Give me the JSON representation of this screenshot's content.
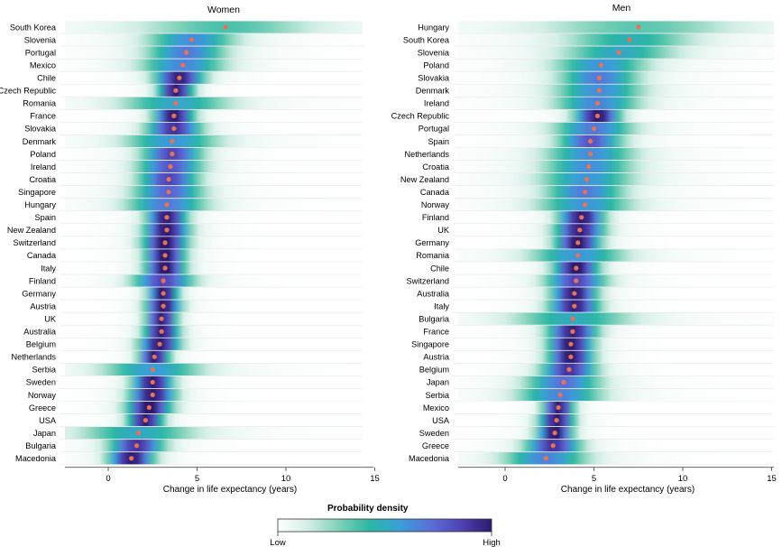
{
  "chart_data": [
    {
      "type": "heatmap",
      "title": "Women",
      "xlabel": "Change in life expectancy (years)",
      "xlim": [
        -2.2,
        15
      ],
      "xticks": [
        0,
        5,
        10,
        15
      ],
      "categories": [
        "South Korea",
        "Slovenia",
        "Portugal",
        "Mexico",
        "Chile",
        "Czech Republic",
        "Romania",
        "France",
        "Slovakia",
        "Denmark",
        "Poland",
        "Ireland",
        "Croatia",
        "Singapore",
        "Hungary",
        "Spain",
        "New Zealand",
        "Switzerland",
        "Canada",
        "Italy",
        "Finland",
        "Germany",
        "Austria",
        "UK",
        "Australia",
        "Belgium",
        "Netherlands",
        "Serbia",
        "Sweden",
        "Norway",
        "Greece",
        "USA",
        "Japan",
        "Bulgaria",
        "Macedonia"
      ],
      "medians": [
        6.6,
        4.7,
        4.4,
        4.2,
        4.0,
        3.8,
        3.8,
        3.7,
        3.7,
        3.6,
        3.6,
        3.5,
        3.4,
        3.4,
        3.3,
        3.3,
        3.3,
        3.2,
        3.2,
        3.2,
        3.1,
        3.1,
        3.1,
        3.0,
        3.0,
        2.9,
        2.6,
        2.5,
        2.5,
        2.5,
        2.3,
        2.1,
        1.7,
        1.6,
        1.3
      ],
      "spread": [
        3.6,
        1.8,
        1.6,
        1.7,
        1.0,
        0.7,
        2.2,
        0.8,
        1.1,
        1.9,
        1.2,
        1.3,
        1.2,
        1.4,
        1.6,
        0.8,
        0.9,
        0.9,
        0.8,
        0.8,
        1.2,
        0.6,
        0.7,
        0.6,
        0.7,
        0.8,
        0.6,
        2.0,
        0.8,
        0.9,
        0.9,
        0.7,
        2.3,
        1.1,
        0.9
      ]
    },
    {
      "type": "heatmap",
      "title": "Men",
      "xlabel": "Change in life expectancy (years)",
      "xlim": [
        -2.2,
        15
      ],
      "xticks": [
        0,
        5,
        10,
        15
      ],
      "categories": [
        "Hungary",
        "South Korea",
        "Slovenia",
        "Poland",
        "Slovakia",
        "Denmark",
        "Ireland",
        "Czech Republic",
        "Portugal",
        "Spain",
        "Netherlands",
        "Croatia",
        "New Zealand",
        "Canada",
        "Norway",
        "Finland",
        "UK",
        "Germany",
        "Romania",
        "Chile",
        "Switzerland",
        "Australia",
        "Italy",
        "Bulgaria",
        "France",
        "Singapore",
        "Austria",
        "Belgium",
        "Japan",
        "Serbia",
        "Mexico",
        "USA",
        "Sweden",
        "Greece",
        "Macedonia"
      ],
      "medians": [
        7.5,
        7.0,
        6.4,
        5.4,
        5.3,
        5.3,
        5.2,
        5.2,
        5.0,
        4.8,
        4.8,
        4.7,
        4.6,
        4.5,
        4.5,
        4.3,
        4.2,
        4.1,
        4.1,
        4.0,
        4.0,
        3.9,
        3.9,
        3.8,
        3.8,
        3.7,
        3.7,
        3.6,
        3.3,
        3.1,
        3.0,
        2.9,
        2.8,
        2.7,
        2.3
      ],
      "spread": [
        4.0,
        2.6,
        2.3,
        1.9,
        1.6,
        1.8,
        1.7,
        0.9,
        1.6,
        1.3,
        1.8,
        1.8,
        1.9,
        1.6,
        1.9,
        0.9,
        1.0,
        0.9,
        1.9,
        0.9,
        1.2,
        0.9,
        1.0,
        2.4,
        1.0,
        0.9,
        0.9,
        1.1,
        1.5,
        1.7,
        0.6,
        0.7,
        0.7,
        1.1,
        1.7
      ]
    }
  ],
  "legend": {
    "title": "Probability density",
    "low_label": "Low",
    "high_label": "High",
    "colors": [
      "#ffffff",
      "#d3eee6",
      "#7fd1b9",
      "#2ab7a4",
      "#3a9ed8",
      "#5b6fd8",
      "#4f42b5",
      "#2d1a6e"
    ]
  },
  "colors": {
    "median_point": "#e4735a",
    "row_divider": "#e6e6e6",
    "axis": "#333333"
  }
}
